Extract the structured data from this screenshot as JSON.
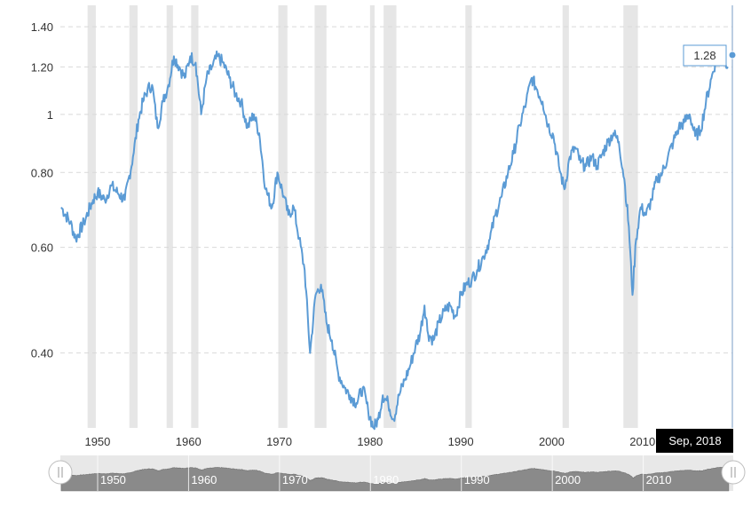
{
  "chart_data": {
    "type": "line",
    "title": "",
    "xlabel": "",
    "ylabel": "",
    "y_scale": "log",
    "ylim": [
      0.3,
      1.52
    ],
    "xlim": [
      1945.9,
      2019.9
    ],
    "y_ticks": [
      {
        "value": 1.4,
        "label": "1.40"
      },
      {
        "value": 1.2,
        "label": "1.20"
      },
      {
        "value": 1.0,
        "label": "1"
      },
      {
        "value": 0.8,
        "label": "0.80"
      },
      {
        "value": 0.6,
        "label": "0.60"
      },
      {
        "value": 0.4,
        "label": "0.40"
      }
    ],
    "x_ticks": [
      {
        "value": 1950,
        "label": "1950"
      },
      {
        "value": 1960,
        "label": "1960"
      },
      {
        "value": 1970,
        "label": "1970"
      },
      {
        "value": 1980,
        "label": "1980"
      },
      {
        "value": 1990,
        "label": "1990"
      },
      {
        "value": 2000,
        "label": "2000"
      },
      {
        "value": 2010,
        "label": "2010"
      }
    ],
    "recessions": [
      [
        1948.9,
        1949.8
      ],
      [
        1953.5,
        1954.4
      ],
      [
        1957.6,
        1958.3
      ],
      [
        1960.3,
        1961.1
      ],
      [
        1969.9,
        1970.9
      ],
      [
        1973.9,
        1975.2
      ],
      [
        1980.0,
        1980.5
      ],
      [
        1981.5,
        1982.9
      ],
      [
        1990.5,
        1991.2
      ],
      [
        2001.2,
        2001.9
      ],
      [
        2007.9,
        2009.5
      ]
    ],
    "series": [
      {
        "name": "Value",
        "color": "#5b9bd5",
        "x": [
          1946.0,
          1947.0,
          1947.6,
          1948.5,
          1949.5,
          1950.0,
          1950.8,
          1951.5,
          1952.2,
          1953.0,
          1953.9,
          1954.5,
          1955.0,
          1955.5,
          1956.0,
          1956.6,
          1957.2,
          1957.8,
          1958.4,
          1959.0,
          1959.6,
          1960.2,
          1960.8,
          1961.4,
          1962.0,
          1962.6,
          1963.2,
          1963.8,
          1964.5,
          1965.2,
          1965.8,
          1966.5,
          1967.2,
          1967.8,
          1968.5,
          1969.2,
          1969.8,
          1970.5,
          1971.0,
          1971.6,
          1972.2,
          1972.8,
          1973.4,
          1974.0,
          1974.6,
          1975.2,
          1975.8,
          1976.5,
          1977.2,
          1977.8,
          1978.5,
          1979.2,
          1979.8,
          1980.4,
          1980.9,
          1981.4,
          1982.0,
          1982.6,
          1983.2,
          1983.8,
          1984.4,
          1985.0,
          1985.5,
          1986.0,
          1986.4,
          1987.0,
          1987.6,
          1988.2,
          1988.8,
          1989.4,
          1990.0,
          1990.6,
          1991.2,
          1991.8,
          1992.5,
          1993.2,
          1993.8,
          1994.5,
          1995.2,
          1995.8,
          1996.5,
          1997.2,
          1997.8,
          1998.4,
          1999.0,
          1999.6,
          2000.2,
          2000.8,
          2001.4,
          2002.0,
          2002.6,
          2003.2,
          2003.8,
          2004.4,
          2005.0,
          2005.6,
          2006.2,
          2006.8,
          2007.4,
          2008.0,
          2008.5,
          2008.9,
          2009.3,
          2009.8,
          2010.4,
          2011.0,
          2011.6,
          2012.2,
          2012.8,
          2013.4,
          2014.0,
          2014.6,
          2015.2,
          2015.8,
          2016.4,
          2017.0,
          2017.6,
          2018.2,
          2018.7,
          2019.0,
          2019.4
        ],
        "values": [
          0.7,
          0.66,
          0.62,
          0.66,
          0.72,
          0.74,
          0.72,
          0.76,
          0.74,
          0.72,
          0.85,
          0.98,
          1.05,
          1.1,
          1.12,
          0.95,
          1.05,
          1.12,
          1.25,
          1.2,
          1.15,
          1.25,
          1.22,
          1.0,
          1.15,
          1.2,
          1.25,
          1.22,
          1.15,
          1.08,
          1.05,
          0.95,
          1.0,
          0.93,
          0.75,
          0.7,
          0.8,
          0.73,
          0.68,
          0.7,
          0.62,
          0.55,
          0.4,
          0.5,
          0.52,
          0.45,
          0.42,
          0.37,
          0.35,
          0.34,
          0.33,
          0.35,
          0.32,
          0.3,
          0.31,
          0.34,
          0.33,
          0.31,
          0.34,
          0.36,
          0.38,
          0.41,
          0.43,
          0.48,
          0.43,
          0.42,
          0.45,
          0.47,
          0.48,
          0.46,
          0.5,
          0.52,
          0.53,
          0.55,
          0.58,
          0.62,
          0.68,
          0.73,
          0.8,
          0.86,
          0.96,
          1.05,
          1.15,
          1.1,
          1.05,
          0.96,
          0.92,
          0.82,
          0.75,
          0.85,
          0.88,
          0.83,
          0.82,
          0.85,
          0.82,
          0.86,
          0.9,
          0.93,
          0.9,
          0.78,
          0.65,
          0.5,
          0.62,
          0.7,
          0.68,
          0.72,
          0.78,
          0.8,
          0.85,
          0.9,
          0.95,
          0.97,
          1.0,
          0.92,
          0.94,
          1.05,
          1.15,
          1.25,
          1.28,
          1.26,
          1.2
        ]
      }
    ],
    "tooltip": {
      "label": "1.28"
    },
    "date_label": "Sep, 2018",
    "navigator": {
      "labels": [
        "1950",
        "1960",
        "1970",
        "1980",
        "1990",
        "2000",
        "2010"
      ]
    }
  },
  "colors": {
    "line": "#5b9bd5",
    "recession": "#e6e6e6",
    "grid": "#d9d9d9",
    "navigator_fill": "#888888",
    "navigator_bg": "#e8e8e8",
    "badge_bg": "#000000"
  }
}
